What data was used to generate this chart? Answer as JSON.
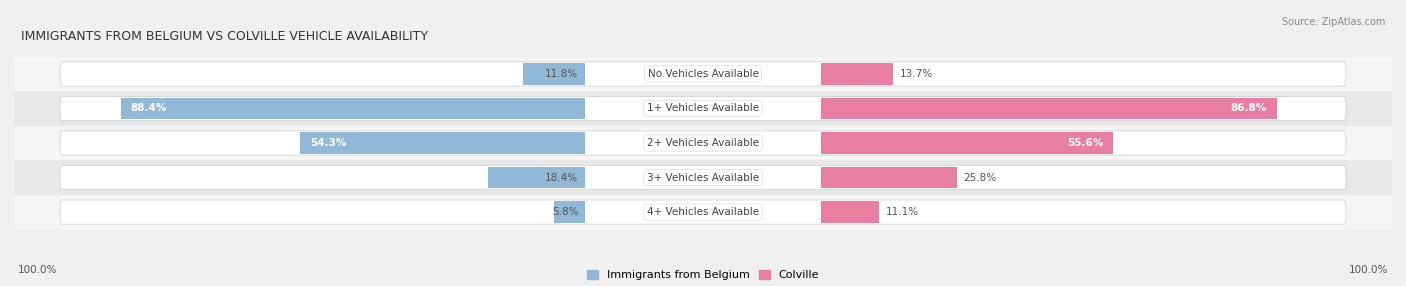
{
  "title": "IMMIGRANTS FROM BELGIUM VS COLVILLE VEHICLE AVAILABILITY",
  "source": "Source: ZipAtlas.com",
  "categories": [
    "No Vehicles Available",
    "1+ Vehicles Available",
    "2+ Vehicles Available",
    "3+ Vehicles Available",
    "4+ Vehicles Available"
  ],
  "belgium_values": [
    11.8,
    88.4,
    54.3,
    18.4,
    5.8
  ],
  "colville_values": [
    13.7,
    86.8,
    55.6,
    25.8,
    11.1
  ],
  "belgium_color": "#92b8d8",
  "colville_color": "#e87fa0",
  "bar_height": 0.62,
  "bg_color": "#f0f0f0",
  "row_bg_light": "#f5f5f5",
  "row_bg_dark": "#e8e8e8",
  "label_bg": "#ffffff",
  "x_max": 100.0,
  "legend_belgium": "Immigrants from Belgium",
  "legend_colville": "Colville",
  "bottom_left": "100.0%",
  "bottom_right": "100.0%"
}
